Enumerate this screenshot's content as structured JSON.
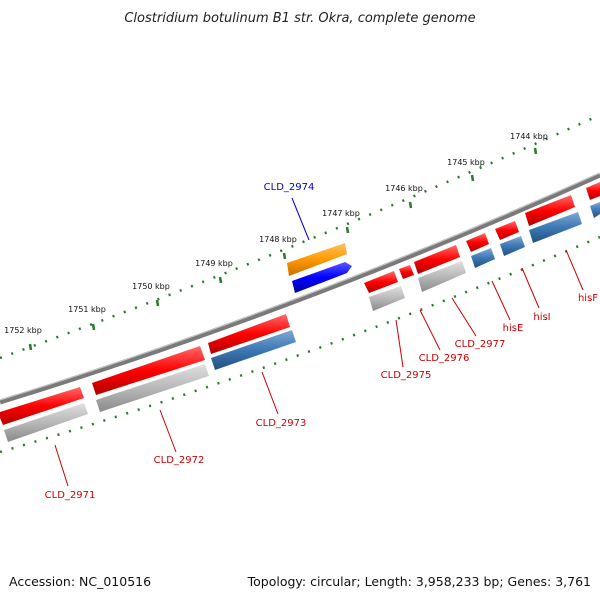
{
  "title": "Clostridium botulinum B1 str. Okra, complete genome",
  "footer": {
    "accession": "Accession: NC_010516",
    "summary": "Topology: circular; Length: 3,958,233 bp; Genes: 3,761"
  },
  "colors": {
    "backbone": "#7a7a7a",
    "forward_cds": "#ff0000",
    "forward_rna": "#b0b0b0",
    "reverse_cds": "#3c78b4",
    "highlight": "#0000ff",
    "highlight_pair": "#ff8c00",
    "tick": "#2a7a2a",
    "label_red": "#cc0000",
    "label_blue": "#0000cc"
  },
  "scale_ticks": [
    {
      "label": "1752 kbp"
    },
    {
      "label": "1751 kbp"
    },
    {
      "label": "1750 kbp"
    },
    {
      "label": "1749 kbp"
    },
    {
      "label": "1748 kbp"
    },
    {
      "label": "1747 kbp"
    },
    {
      "label": "1746 kbp"
    },
    {
      "label": "1745 kbp"
    },
    {
      "label": "1744 kbp"
    }
  ],
  "gene_labels": [
    {
      "name": "CLD_2974",
      "color": "blue"
    },
    {
      "name": "CLD_2971",
      "color": "red"
    },
    {
      "name": "CLD_2972",
      "color": "red"
    },
    {
      "name": "CLD_2973",
      "color": "red"
    },
    {
      "name": "CLD_2975",
      "color": "red"
    },
    {
      "name": "CLD_2976",
      "color": "red"
    },
    {
      "name": "CLD_2977",
      "color": "red"
    },
    {
      "name": "hisE",
      "color": "red"
    },
    {
      "name": "hisI",
      "color": "red"
    },
    {
      "name": "hisF",
      "color": "red"
    }
  ]
}
